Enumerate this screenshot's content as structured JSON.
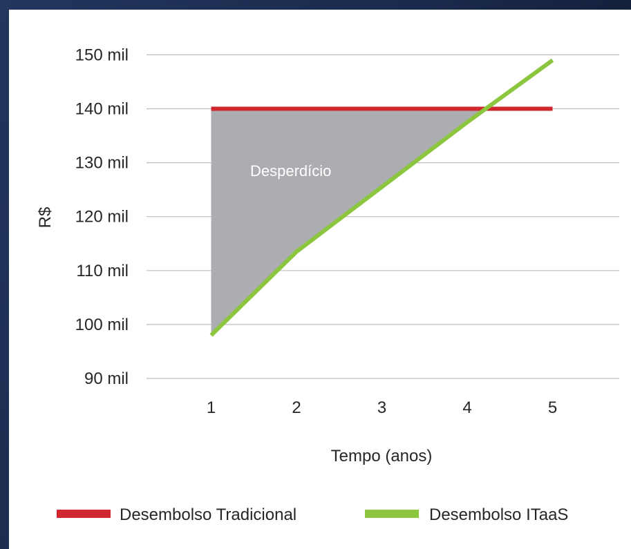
{
  "chart_data": {
    "type": "line",
    "title": "",
    "xlabel": "Tempo (anos)",
    "ylabel": "R$",
    "x": [
      1,
      2,
      3,
      4,
      5
    ],
    "xlim": [
      0,
      5.8
    ],
    "ylim": [
      90,
      150
    ],
    "yticks": [
      90,
      100,
      110,
      120,
      130,
      140,
      150
    ],
    "ytick_labels": [
      "90 mil",
      "100 mil",
      "110 mil",
      "120 mil",
      "130 mil",
      "140 mil",
      "150 mil"
    ],
    "xtick_labels": [
      "1",
      "2",
      "3",
      "4",
      "5"
    ],
    "grid": "horizontal",
    "legend_position": "bottom",
    "series": [
      {
        "name": "Desembolso Tradicional",
        "x": [
          1,
          5
        ],
        "values": [
          140,
          140
        ],
        "color": "#d0262e"
      },
      {
        "name": "Desembolso ITaaS",
        "x": [
          1,
          2,
          3,
          4,
          5
        ],
        "values": [
          98,
          113.5,
          125.5,
          137.5,
          149
        ],
        "color": "#8cc63f"
      }
    ],
    "shaded_region": {
      "label": "Desperdício",
      "color": "#acadb1",
      "between": [
        "Desembolso Tradicional",
        "Desembolso ITaaS"
      ],
      "x_range": [
        1,
        4.25
      ]
    }
  }
}
